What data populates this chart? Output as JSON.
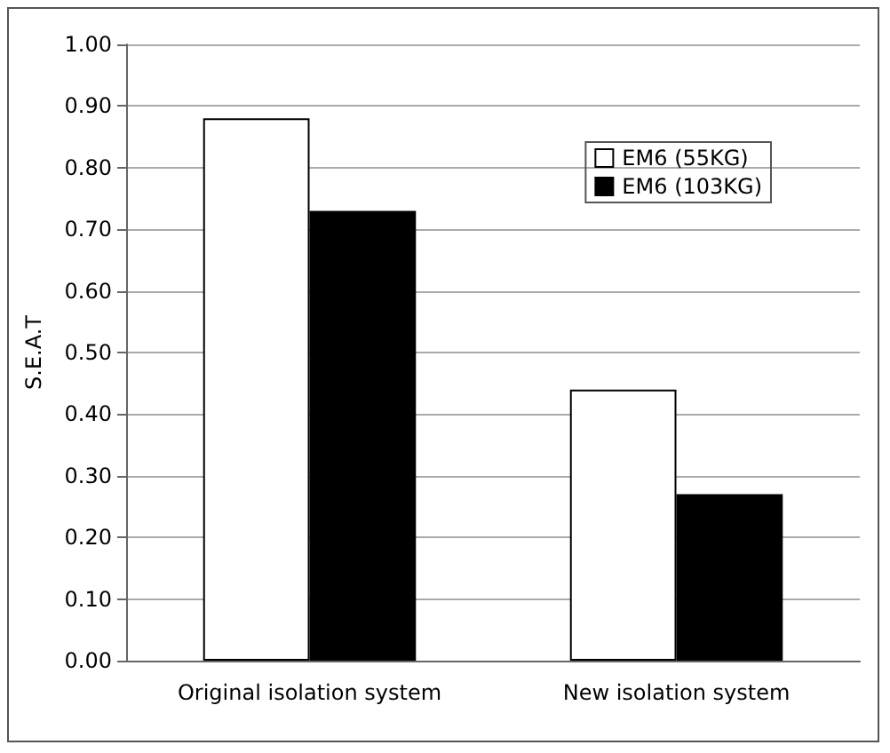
{
  "chart_data": {
    "type": "bar",
    "ylabel": "S.E.A.T",
    "categories": [
      "Original isolation system",
      "New isolation system"
    ],
    "series": [
      {
        "name": "EM6 (55KG)",
        "color": "#ffffff",
        "values": [
          0.88,
          0.44
        ]
      },
      {
        "name": "EM6 (103KG)",
        "color": "#000000",
        "values": [
          0.73,
          0.27
        ]
      }
    ],
    "ylim": [
      0,
      1
    ],
    "yticks": [
      {
        "value": 0,
        "label": "0.00"
      },
      {
        "value": 0.1,
        "label": "0.10"
      },
      {
        "value": 0.2,
        "label": "0.20"
      },
      {
        "value": 0.3,
        "label": "0.30"
      },
      {
        "value": 0.4,
        "label": "0.40"
      },
      {
        "value": 0.5,
        "label": "0.50"
      },
      {
        "value": 0.6,
        "label": "0.60"
      },
      {
        "value": 0.7,
        "label": "0.70"
      },
      {
        "value": 0.8,
        "label": "0.80"
      },
      {
        "value": 0.9,
        "label": "0.90"
      },
      {
        "value": 1,
        "label": "1.00"
      }
    ],
    "grid": "y",
    "legend": "top right"
  }
}
